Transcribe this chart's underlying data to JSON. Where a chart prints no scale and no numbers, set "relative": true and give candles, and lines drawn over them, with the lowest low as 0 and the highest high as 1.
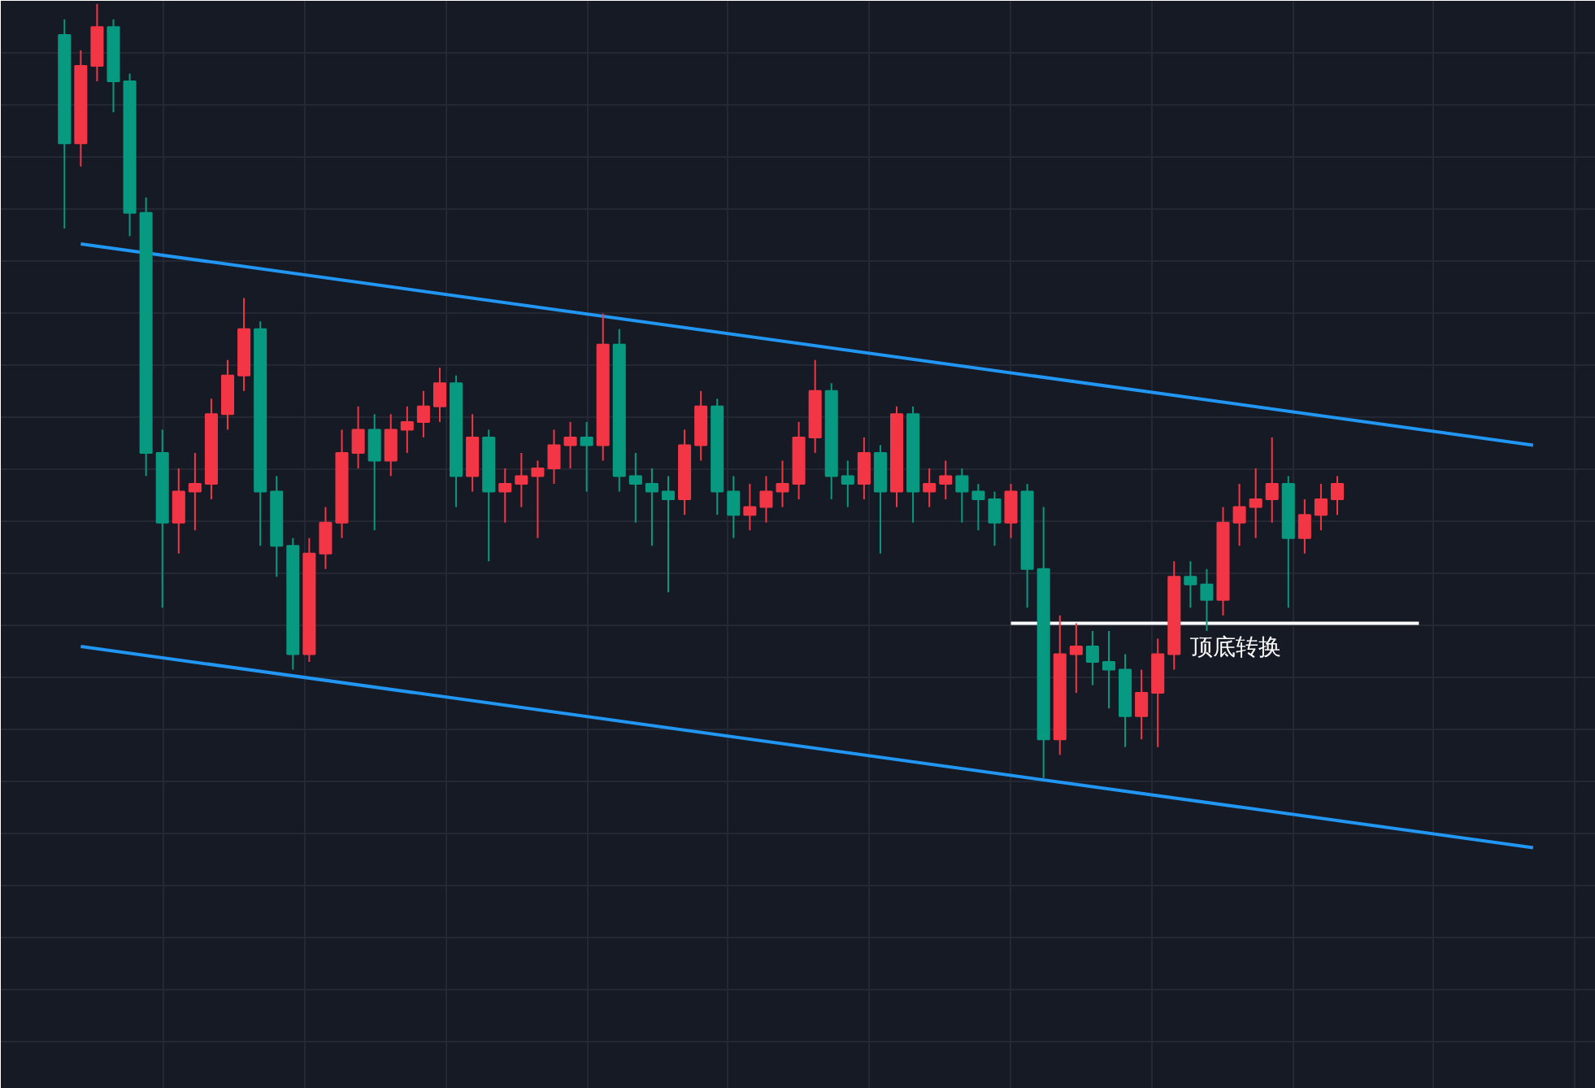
{
  "chart_data": {
    "type": "candlestick",
    "relative": true,
    "tick_labels": false,
    "grid": true,
    "categories": [
      null,
      null,
      null,
      null,
      null,
      null,
      null,
      null,
      null,
      null,
      null,
      null,
      null,
      null,
      null,
      null,
      null,
      null,
      null,
      null,
      null,
      null,
      null,
      null,
      null,
      null,
      null,
      null,
      null,
      null,
      null,
      null,
      null,
      null,
      null,
      null,
      null,
      null,
      null,
      null,
      null,
      null,
      null,
      null,
      null,
      null,
      null,
      null,
      null,
      null,
      null,
      null,
      null,
      null,
      null,
      null,
      null,
      null,
      null,
      null,
      null,
      null,
      null,
      null,
      null,
      null,
      null,
      null,
      null,
      null,
      null,
      null,
      null,
      null,
      null,
      null,
      null,
      null,
      null,
      null,
      null,
      null,
      null,
      null,
      null,
      null,
      null,
      null,
      null,
      null,
      null
    ],
    "ohlc": [
      [
        0.96,
        0.98,
        0.71,
        0.82
      ],
      [
        0.82,
        0.94,
        0.79,
        0.92
      ],
      [
        0.92,
        1.0,
        0.9,
        0.97
      ],
      [
        0.97,
        0.98,
        0.86,
        0.9
      ],
      [
        0.9,
        0.91,
        0.7,
        0.73
      ],
      [
        0.73,
        0.75,
        0.39,
        0.42
      ],
      [
        0.42,
        0.45,
        0.22,
        0.33
      ],
      [
        0.33,
        0.4,
        0.29,
        0.37
      ],
      [
        0.37,
        0.42,
        0.32,
        0.38
      ],
      [
        0.38,
        0.49,
        0.36,
        0.47
      ],
      [
        0.47,
        0.54,
        0.45,
        0.52
      ],
      [
        0.52,
        0.62,
        0.5,
        0.58
      ],
      [
        0.58,
        0.59,
        0.3,
        0.37
      ],
      [
        0.37,
        0.39,
        0.26,
        0.3
      ],
      [
        0.3,
        0.31,
        0.14,
        0.16
      ],
      [
        0.16,
        0.31,
        0.15,
        0.29
      ],
      [
        0.29,
        0.35,
        0.27,
        0.33
      ],
      [
        0.33,
        0.45,
        0.31,
        0.42
      ],
      [
        0.42,
        0.48,
        0.4,
        0.45
      ],
      [
        0.45,
        0.47,
        0.32,
        0.41
      ],
      [
        0.41,
        0.47,
        0.39,
        0.45
      ],
      [
        0.45,
        0.48,
        0.42,
        0.46
      ],
      [
        0.46,
        0.5,
        0.44,
        0.48
      ],
      [
        0.48,
        0.53,
        0.46,
        0.51
      ],
      [
        0.51,
        0.52,
        0.35,
        0.39
      ],
      [
        0.39,
        0.47,
        0.37,
        0.44
      ],
      [
        0.44,
        0.45,
        0.28,
        0.37
      ],
      [
        0.37,
        0.4,
        0.33,
        0.38
      ],
      [
        0.38,
        0.42,
        0.35,
        0.39
      ],
      [
        0.39,
        0.41,
        0.31,
        0.4
      ],
      [
        0.4,
        0.45,
        0.38,
        0.43
      ],
      [
        0.43,
        0.46,
        0.4,
        0.44
      ],
      [
        0.44,
        0.46,
        0.37,
        0.43
      ],
      [
        0.43,
        0.6,
        0.41,
        0.56
      ],
      [
        0.56,
        0.58,
        0.37,
        0.39
      ],
      [
        0.39,
        0.42,
        0.33,
        0.38
      ],
      [
        0.38,
        0.4,
        0.3,
        0.37
      ],
      [
        0.37,
        0.39,
        0.24,
        0.36
      ],
      [
        0.36,
        0.45,
        0.34,
        0.43
      ],
      [
        0.43,
        0.5,
        0.41,
        0.48
      ],
      [
        0.48,
        0.49,
        0.34,
        0.37
      ],
      [
        0.37,
        0.39,
        0.31,
        0.34
      ],
      [
        0.34,
        0.38,
        0.32,
        0.35
      ],
      [
        0.35,
        0.39,
        0.33,
        0.37
      ],
      [
        0.37,
        0.41,
        0.35,
        0.38
      ],
      [
        0.38,
        0.46,
        0.36,
        0.44
      ],
      [
        0.44,
        0.54,
        0.42,
        0.5
      ],
      [
        0.5,
        0.51,
        0.36,
        0.39
      ],
      [
        0.39,
        0.41,
        0.35,
        0.38
      ],
      [
        0.38,
        0.44,
        0.36,
        0.42
      ],
      [
        0.42,
        0.43,
        0.29,
        0.37
      ],
      [
        0.37,
        0.48,
        0.35,
        0.47
      ],
      [
        0.47,
        0.48,
        0.33,
        0.37
      ],
      [
        0.37,
        0.4,
        0.35,
        0.38
      ],
      [
        0.38,
        0.41,
        0.36,
        0.39
      ],
      [
        0.39,
        0.4,
        0.33,
        0.37
      ],
      [
        0.37,
        0.38,
        0.32,
        0.36
      ],
      [
        0.36,
        0.37,
        0.3,
        0.33
      ],
      [
        0.33,
        0.38,
        0.31,
        0.37
      ],
      [
        0.37,
        0.38,
        0.22,
        0.27
      ],
      [
        0.27,
        0.35,
        0.0,
        0.05
      ],
      [
        0.05,
        0.21,
        0.03,
        0.16
      ],
      [
        0.16,
        0.2,
        0.11,
        0.17
      ],
      [
        0.17,
        0.19,
        0.12,
        0.15
      ],
      [
        0.15,
        0.19,
        0.09,
        0.14
      ],
      [
        0.14,
        0.16,
        0.04,
        0.08
      ],
      [
        0.08,
        0.14,
        0.05,
        0.11
      ],
      [
        0.11,
        0.18,
        0.04,
        0.16
      ],
      [
        0.16,
        0.28,
        0.14,
        0.26
      ],
      [
        0.26,
        0.28,
        0.22,
        0.25
      ],
      [
        0.25,
        0.27,
        0.19,
        0.23
      ],
      [
        0.23,
        0.35,
        0.21,
        0.33
      ],
      [
        0.33,
        0.38,
        0.3,
        0.35
      ],
      [
        0.35,
        0.4,
        0.31,
        0.36
      ],
      [
        0.36,
        0.44,
        0.33,
        0.38
      ],
      [
        0.38,
        0.39,
        0.22,
        0.31
      ],
      [
        0.31,
        0.36,
        0.29,
        0.34
      ],
      [
        0.34,
        0.38,
        0.32,
        0.36
      ],
      [
        0.36,
        0.39,
        0.34,
        0.38
      ],
      null,
      null,
      null,
      null,
      null,
      null,
      null,
      null,
      null,
      null,
      null,
      null
    ],
    "colors": [
      "#089981",
      "#f23645",
      "#f23645",
      "#089981",
      "#089981",
      "#089981",
      "#089981",
      "#f23645",
      "#f23645",
      "#f23645",
      "#f23645",
      "#f23645",
      "#089981",
      "#089981",
      "#089981",
      "#f23645",
      "#f23645",
      "#f23645",
      "#f23645",
      "#089981",
      "#f23645",
      "#f23645",
      "#f23645",
      "#f23645",
      "#089981",
      "#f23645",
      "#089981",
      "#f23645",
      "#f23645",
      "#f23645",
      "#f23645",
      "#f23645",
      "#089981",
      "#f23645",
      "#089981",
      "#089981",
      "#089981",
      "#089981",
      "#f23645",
      "#f23645",
      "#089981",
      "#089981",
      "#f23645",
      "#f23645",
      "#f23645",
      "#f23645",
      "#f23645",
      "#089981",
      "#089981",
      "#f23645",
      "#089981",
      "#f23645",
      "#089981",
      "#f23645",
      "#f23645",
      "#089981",
      "#089981",
      "#089981",
      "#f23645",
      "#089981",
      "#089981",
      "#f23645",
      "#f23645",
      "#089981",
      "#089981",
      "#089981",
      "#f23645",
      "#f23645",
      "#f23645",
      "#089981",
      "#089981",
      "#f23645",
      "#f23645",
      "#f23645",
      "#f23645",
      "#089981",
      "#f23645",
      "#f23645",
      "#f23645",
      null,
      null,
      null,
      null,
      null,
      null,
      null,
      null,
      null,
      null,
      null,
      null
    ],
    "series": [
      {
        "type": "line",
        "color": "#2196f3",
        "values": [
          null,
          0.69,
          null,
          null,
          null,
          null,
          null,
          null,
          null,
          null,
          null,
          null,
          null,
          null,
          null,
          null,
          null,
          null,
          null,
          null,
          null,
          null,
          null,
          null,
          null,
          null,
          null,
          null,
          null,
          null,
          null,
          null,
          null,
          null,
          null,
          null,
          null,
          null,
          null,
          null,
          null,
          null,
          null,
          null,
          null,
          null,
          null,
          null,
          null,
          null,
          null,
          null,
          null,
          null,
          null,
          null,
          null,
          null,
          null,
          null,
          null,
          null,
          null,
          null,
          null,
          null,
          null,
          null,
          null,
          null,
          null,
          null,
          null,
          null,
          null,
          null,
          null,
          null,
          null,
          null,
          null,
          null,
          null,
          null,
          null,
          null,
          null,
          null,
          null,
          null,
          0.43
        ]
      },
      {
        "type": "line",
        "color": "#2196f3",
        "values": [
          null,
          0.17,
          null,
          null,
          null,
          null,
          null,
          null,
          null,
          null,
          null,
          null,
          null,
          null,
          null,
          null,
          null,
          null,
          null,
          null,
          null,
          null,
          null,
          null,
          null,
          null,
          null,
          null,
          null,
          null,
          null,
          null,
          null,
          null,
          null,
          null,
          null,
          null,
          null,
          null,
          null,
          null,
          null,
          null,
          null,
          null,
          null,
          null,
          null,
          null,
          null,
          null,
          null,
          null,
          null,
          null,
          null,
          null,
          null,
          null,
          null,
          null,
          null,
          null,
          null,
          null,
          null,
          null,
          null,
          null,
          null,
          null,
          null,
          null,
          null,
          null,
          null,
          null,
          null,
          null,
          null,
          null,
          null,
          null,
          null,
          null,
          null,
          null,
          null,
          null,
          -0.09
        ]
      },
      {
        "type": "line",
        "color": "#ffffff",
        "values": [
          null,
          null,
          null,
          null,
          null,
          null,
          null,
          null,
          null,
          null,
          null,
          null,
          null,
          null,
          null,
          null,
          null,
          null,
          null,
          null,
          null,
          null,
          null,
          null,
          null,
          null,
          null,
          null,
          null,
          null,
          null,
          null,
          null,
          null,
          null,
          null,
          null,
          null,
          null,
          null,
          null,
          null,
          null,
          null,
          null,
          null,
          null,
          null,
          null,
          null,
          null,
          null,
          null,
          null,
          null,
          null,
          null,
          null,
          0.2,
          null,
          null,
          null,
          null,
          null,
          null,
          null,
          null,
          null,
          null,
          null,
          null,
          null,
          null,
          null,
          null,
          null,
          null,
          null,
          null,
          null,
          null,
          null,
          null,
          0.2,
          null,
          null,
          null,
          null,
          null,
          null,
          null
        ]
      }
    ],
    "annotations": [
      "顶底转换"
    ]
  }
}
